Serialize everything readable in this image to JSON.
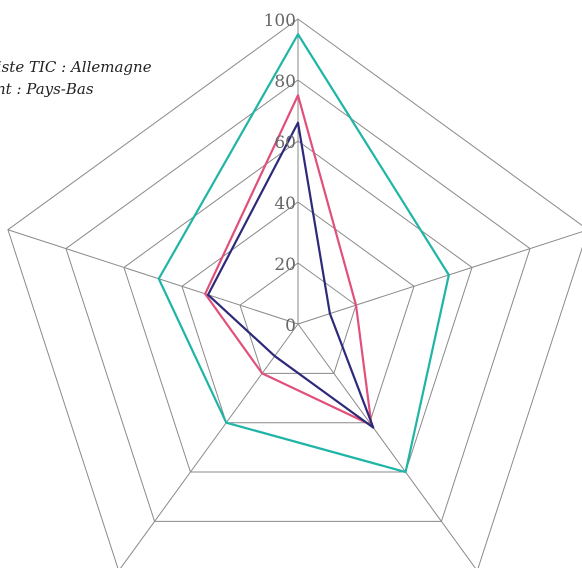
{
  "chart_data": {
    "type": "radar",
    "axes_count": 5,
    "rmin": 0,
    "rmax": 100,
    "ticks": [
      0,
      20,
      40,
      60,
      80,
      100
    ],
    "tick_labels": [
      "0",
      "20",
      "40",
      "60",
      "80",
      "100"
    ],
    "legend_lines": [
      "liste TIC : Allemagne",
      "nt : Pays-Bas"
    ],
    "grid": true,
    "series": [
      {
        "color": "#1fb5a6",
        "values": [
          95,
          52,
          60,
          40,
          48
        ]
      },
      {
        "color": "#e0507a",
        "values": [
          75,
          20,
          41,
          20,
          32
        ]
      },
      {
        "color": "#2e2a7a",
        "values": [
          66,
          11,
          42,
          13,
          31
        ]
      }
    ]
  }
}
